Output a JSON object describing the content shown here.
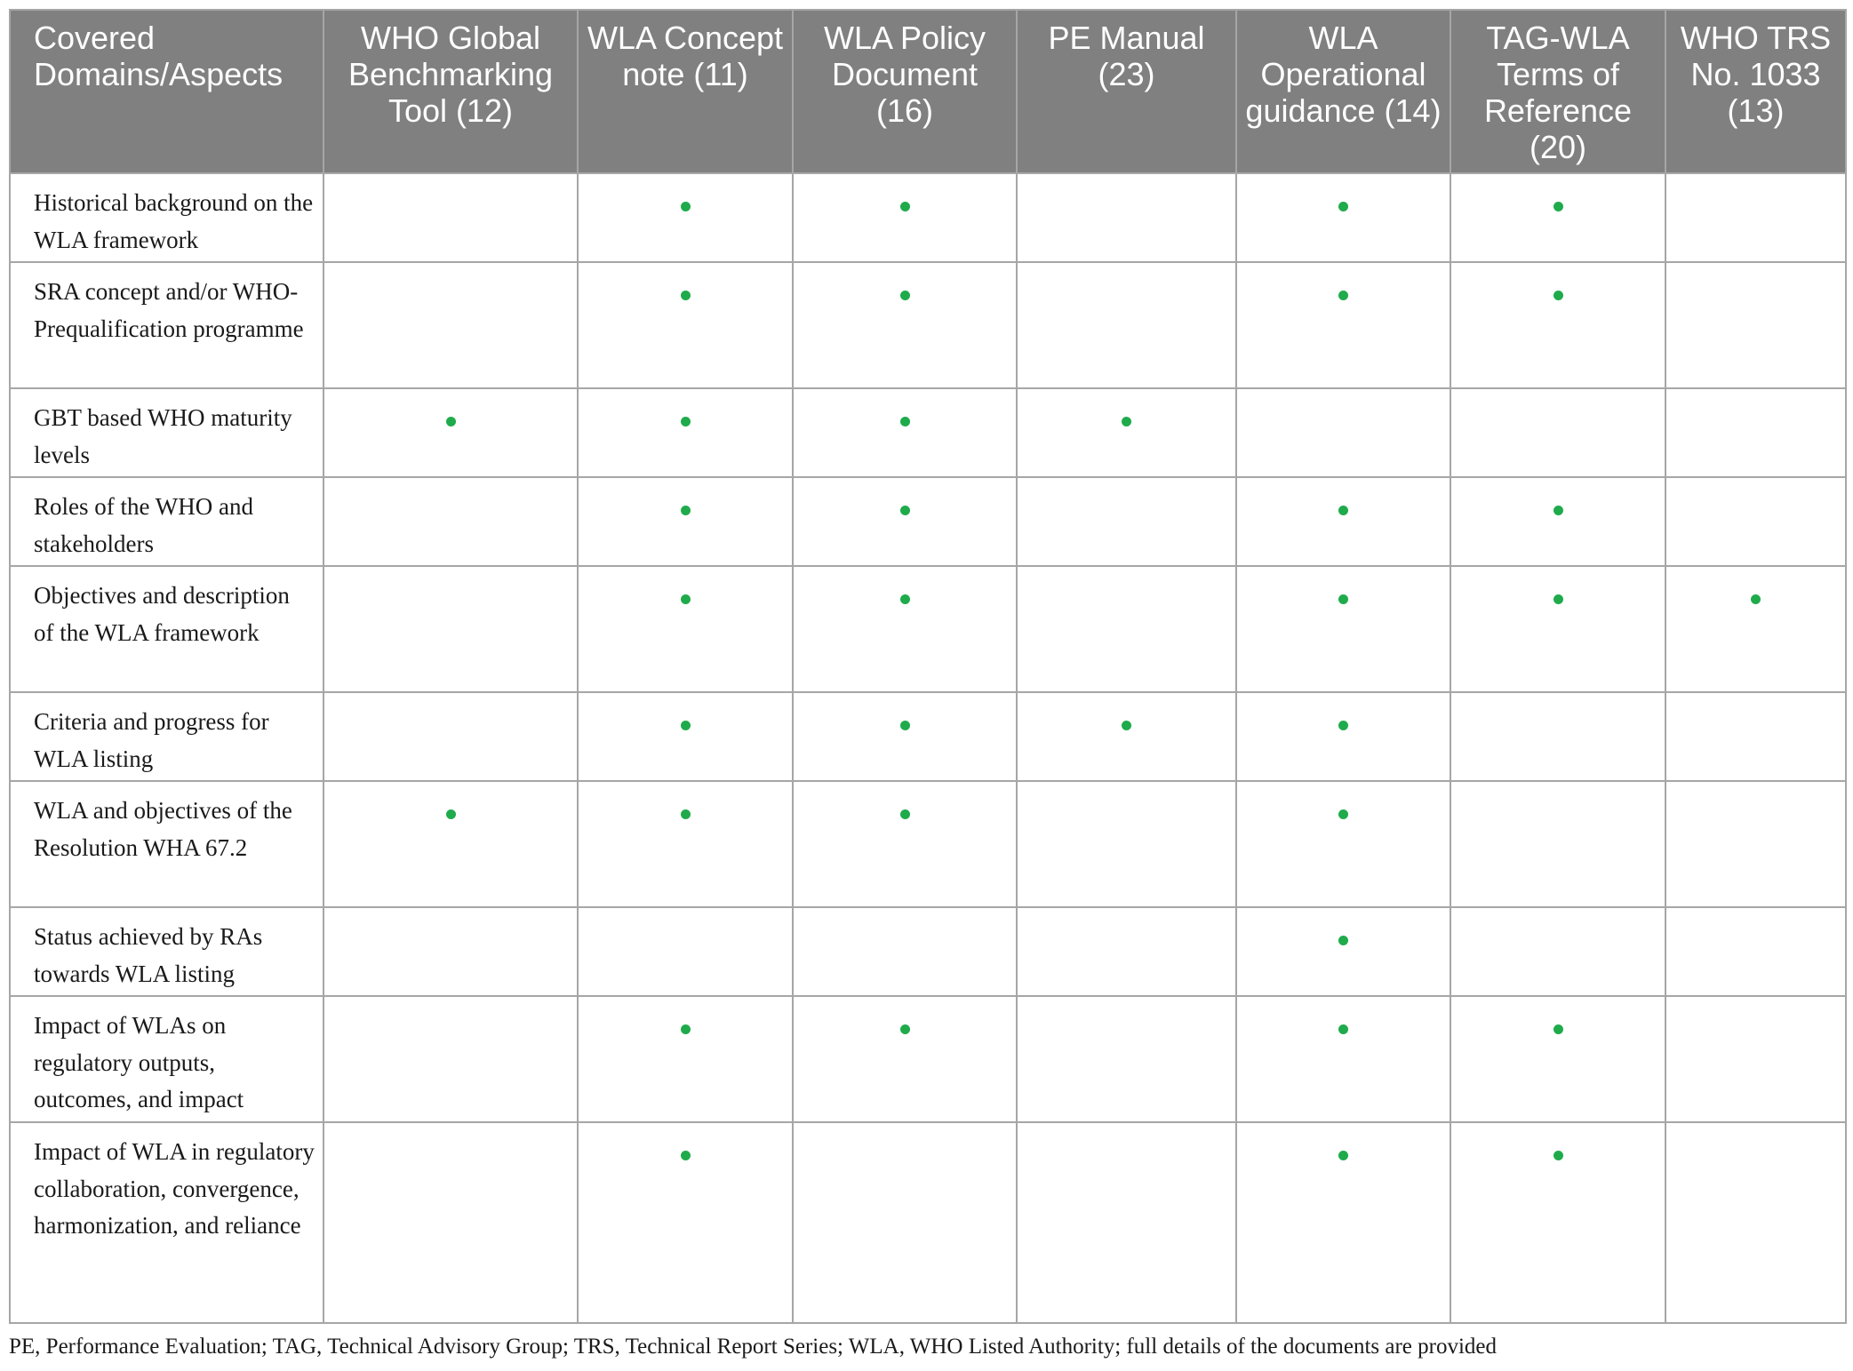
{
  "table": {
    "headers": [
      "Covered Domains/Aspects",
      "WHO Global Benchmarking Tool (12)",
      "WLA Concept note (11)",
      "WLA Policy Document (16)",
      "PE Manual (23)",
      "WLA Operational guidance (14)",
      "TAG-WLA Terms of Reference (20)",
      "WHO TRS No. 1033 (13)"
    ],
    "rows": [
      {
        "aspect": "Historical background on the WLA framework",
        "covered": [
          false,
          true,
          true,
          false,
          true,
          true,
          false
        ]
      },
      {
        "aspect": "SRA concept and/or WHO-Prequalification programme",
        "covered": [
          false,
          true,
          true,
          false,
          true,
          true,
          false
        ]
      },
      {
        "aspect": "GBT based WHO maturity levels",
        "covered": [
          true,
          true,
          true,
          true,
          false,
          false,
          false
        ]
      },
      {
        "aspect": "Roles of the WHO and stakeholders",
        "covered": [
          false,
          true,
          true,
          false,
          true,
          true,
          false
        ]
      },
      {
        "aspect": "Objectives and description of the WLA framework",
        "covered": [
          false,
          true,
          true,
          false,
          true,
          true,
          true
        ]
      },
      {
        "aspect": "Criteria and progress for WLA listing",
        "covered": [
          false,
          true,
          true,
          true,
          true,
          false,
          false
        ]
      },
      {
        "aspect": "WLA and objectives of the Resolution WHA 67.2",
        "covered": [
          true,
          true,
          true,
          false,
          true,
          false,
          false
        ]
      },
      {
        "aspect": "Status achieved by RAs towards WLA listing",
        "covered": [
          false,
          false,
          false,
          false,
          true,
          false,
          false
        ]
      },
      {
        "aspect": "Impact of WLAs on regulatory outputs, outcomes, and impact",
        "covered": [
          false,
          true,
          true,
          false,
          true,
          true,
          false
        ]
      },
      {
        "aspect": "Impact of WLA in regulatory collaboration, convergence, harmonization, and reliance",
        "covered": [
          false,
          true,
          false,
          false,
          true,
          true,
          false
        ]
      }
    ]
  },
  "colors": {
    "header_bg": "#808080",
    "dot": "#1fab4b",
    "border": "#a6a6a6"
  },
  "footnote": "PE, Performance Evaluation; TAG, Technical Advisory Group; TRS, Technical Report Series; WLA, WHO Listed Authority; full details of the documents are provided"
}
